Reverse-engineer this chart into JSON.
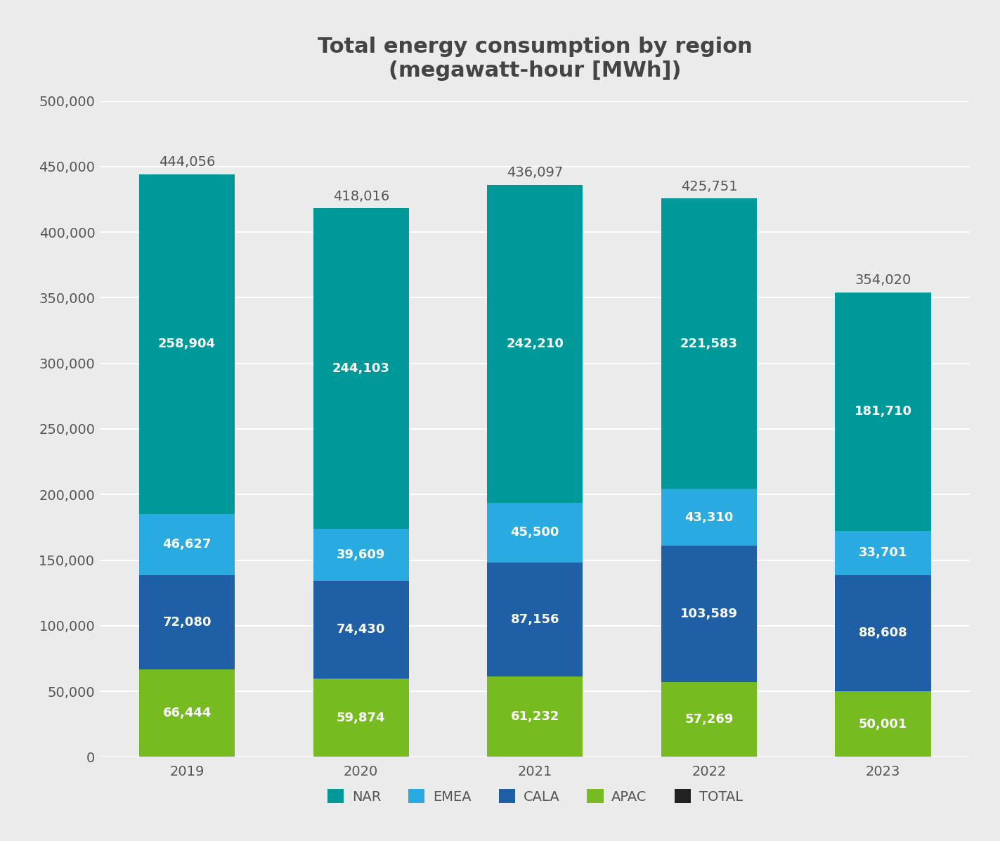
{
  "title": "Total energy consumption by region\n(megawatt-hour [MWh])",
  "years": [
    "2019",
    "2020",
    "2021",
    "2022",
    "2023"
  ],
  "segments": {
    "APAC": [
      66444,
      59874,
      61232,
      57269,
      50001
    ],
    "CALA": [
      72080,
      74430,
      87156,
      103589,
      88608
    ],
    "EMEA": [
      46627,
      39609,
      45500,
      43310,
      33701
    ],
    "NAR": [
      258904,
      244103,
      242210,
      221583,
      181710
    ]
  },
  "totals": [
    444056,
    418016,
    436097,
    425751,
    354020
  ],
  "colors": {
    "APAC": "#76bc21",
    "CALA": "#1f5fa6",
    "EMEA": "#29abe2",
    "NAR": "#009999"
  },
  "background_color": "#ebebeb",
  "bar_width": 0.55,
  "ylim": [
    0,
    500000
  ],
  "yticks": [
    0,
    50000,
    100000,
    150000,
    200000,
    250000,
    300000,
    350000,
    400000,
    450000,
    500000
  ],
  "ytick_labels": [
    "0",
    "50,000",
    "100,000",
    "150,000",
    "200,000",
    "250,000",
    "300,000",
    "350,000",
    "400,000",
    "450,000",
    "500,000"
  ],
  "label_fontsize": 13,
  "title_fontsize": 22,
  "tick_fontsize": 14,
  "total_fontsize": 14,
  "legend_fontsize": 14,
  "segment_order": [
    "APAC",
    "CALA",
    "EMEA",
    "NAR"
  ],
  "legend_labels": [
    "NAR",
    "EMEA",
    "CALA",
    "APAC",
    "TOTAL"
  ],
  "legend_colors": [
    "#009999",
    "#29abe2",
    "#1f5fa6",
    "#76bc21",
    "#222222"
  ]
}
